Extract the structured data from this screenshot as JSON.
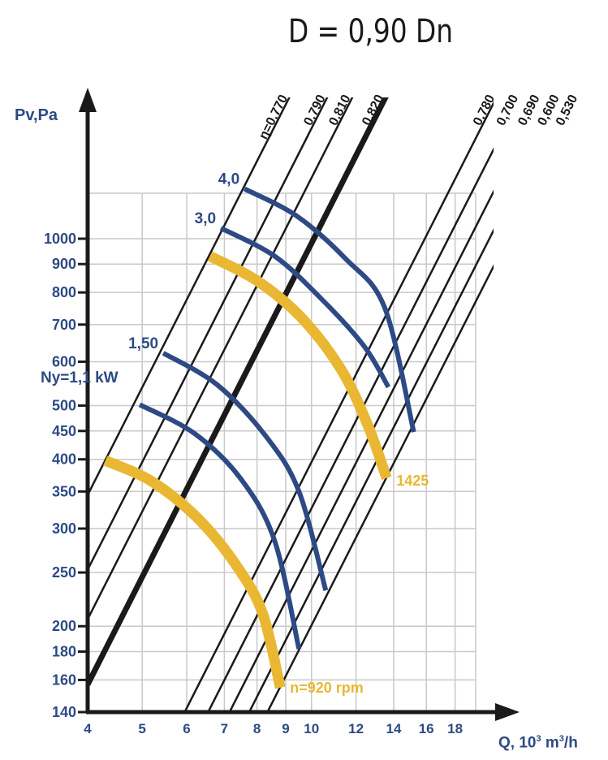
{
  "title": "D = 0,90 Dn",
  "ylabel": "Pv,Pa",
  "xlabel": "Q, 10",
  "xlabel_sup": "3",
  "xlabel_unit": " m",
  "xlabel_unit_sup": "3",
  "xlabel_tail": "/h",
  "power_label": "Ny=1,1 kW",
  "colors": {
    "blue": "#2d4a84",
    "yellow": "#e9b732",
    "black": "#1a1a1a",
    "grid": "#c9c9c9"
  },
  "chart_data": {
    "type": "line",
    "xscale": "log",
    "yscale": "log",
    "xlim": [
      4,
      24
    ],
    "ylim": [
      140,
      1600
    ],
    "xticks": [
      4,
      5,
      6,
      7,
      8,
      9,
      10,
      12,
      14,
      16,
      18
    ],
    "yticks": [
      140,
      160,
      180,
      200,
      250,
      300,
      350,
      400,
      450,
      500,
      600,
      700,
      800,
      900,
      1000
    ],
    "grid": true,
    "efficiency_lines": [
      {
        "label": "η=0,770",
        "x0": 4,
        "y0": 345,
        "bold": false
      },
      {
        "label": "0,790",
        "x0": 4,
        "y0": 253,
        "bold": false
      },
      {
        "label": "0,810",
        "x0": 4,
        "y0": 206,
        "bold": false
      },
      {
        "label": "0,820",
        "x0": 4,
        "y0": 157,
        "bold": true
      },
      {
        "label": "0,780",
        "x0": 5.95,
        "y0": 140,
        "bold": false
      },
      {
        "label": "0,700",
        "x0": 6.55,
        "y0": 140,
        "bold": false
      },
      {
        "label": "0,690",
        "x0": 7.15,
        "y0": 140,
        "bold": false
      },
      {
        "label": "0,600",
        "x0": 7.75,
        "y0": 140,
        "bold": false
      },
      {
        "label": "0,530",
        "x0": 8.35,
        "y0": 140,
        "bold": false
      }
    ],
    "speed_curves": [
      {
        "name": "n=920 rpm",
        "points": [
          [
            4.3,
            398
          ],
          [
            5.2,
            365
          ],
          [
            6.3,
            312
          ],
          [
            7.4,
            255
          ],
          [
            8.2,
            210
          ],
          [
            8.8,
            155
          ]
        ]
      },
      {
        "name": "1425",
        "points": [
          [
            6.6,
            930
          ],
          [
            8.0,
            840
          ],
          [
            9.6,
            720
          ],
          [
            11.3,
            580
          ],
          [
            12.6,
            460
          ],
          [
            13.6,
            370
          ]
        ]
      }
    ],
    "power_curves": [
      {
        "name": "",
        "points": [
          [
            4.95,
            502
          ],
          [
            6.2,
            445
          ],
          [
            7.5,
            368
          ],
          [
            8.6,
            285
          ],
          [
            9.5,
            182
          ]
        ]
      },
      {
        "name": "1,50",
        "points": [
          [
            5.45,
            622
          ],
          [
            6.8,
            545
          ],
          [
            8.3,
            440
          ],
          [
            9.5,
            350
          ],
          [
            10.6,
            232
          ]
        ]
      },
      {
        "name": "3,0",
        "points": [
          [
            6.9,
            1045
          ],
          [
            8.6,
            930
          ],
          [
            10.4,
            780
          ],
          [
            12.4,
            640
          ],
          [
            13.7,
            540
          ]
        ]
      },
      {
        "name": "4,0",
        "points": [
          [
            7.6,
            1230
          ],
          [
            9.4,
            1100
          ],
          [
            11.5,
            920
          ],
          [
            13.5,
            750
          ],
          [
            15.2,
            448
          ]
        ]
      }
    ]
  }
}
